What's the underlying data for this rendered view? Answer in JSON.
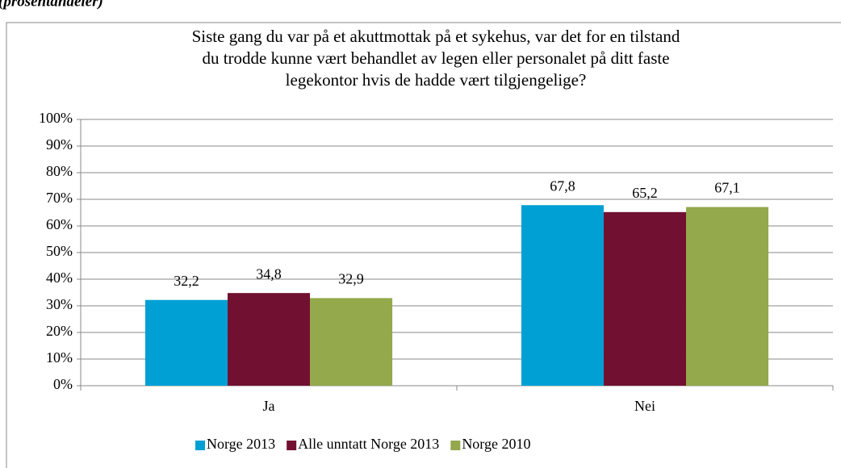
{
  "chart_data": {
    "type": "bar",
    "subtitle": "(prosentandeler)",
    "title": [
      "Siste gang du var på et akuttmottak på et sykehus, var det for en tilstand",
      "du trodde kunne vært behandlet av legen eller personalet på ditt faste",
      "legekontor hvis de hadde vært tilgjengelige?"
    ],
    "categories": [
      "Ja",
      "Nei"
    ],
    "series": [
      {
        "name": "Norge 2013",
        "color": "#00a0d4",
        "values": [
          32.2,
          67.8
        ],
        "value_labels": [
          "32,2",
          "67,8"
        ]
      },
      {
        "name": "Alle unntatt Norge 2013",
        "color": "#721032",
        "values": [
          34.8,
          65.2
        ],
        "value_labels": [
          "34,8",
          "65,2"
        ]
      },
      {
        "name": "Norge 2010",
        "color": "#94a84c",
        "values": [
          32.9,
          67.1
        ],
        "value_labels": [
          "32,9",
          "67,1"
        ]
      }
    ],
    "ylim": [
      0,
      100
    ],
    "yticks": [
      {
        "value": 0,
        "label": "0%"
      },
      {
        "value": 10,
        "label": "10%"
      },
      {
        "value": 20,
        "label": "20%"
      },
      {
        "value": 30,
        "label": "30%"
      },
      {
        "value": 40,
        "label": "40%"
      },
      {
        "value": 50,
        "label": "50%"
      },
      {
        "value": 60,
        "label": "60%"
      },
      {
        "value": 70,
        "label": "70%"
      },
      {
        "value": 80,
        "label": "80%"
      },
      {
        "value": 90,
        "label": "90%"
      },
      {
        "value": 100,
        "label": "100%"
      }
    ],
    "grid": true,
    "legend": "bottom"
  }
}
